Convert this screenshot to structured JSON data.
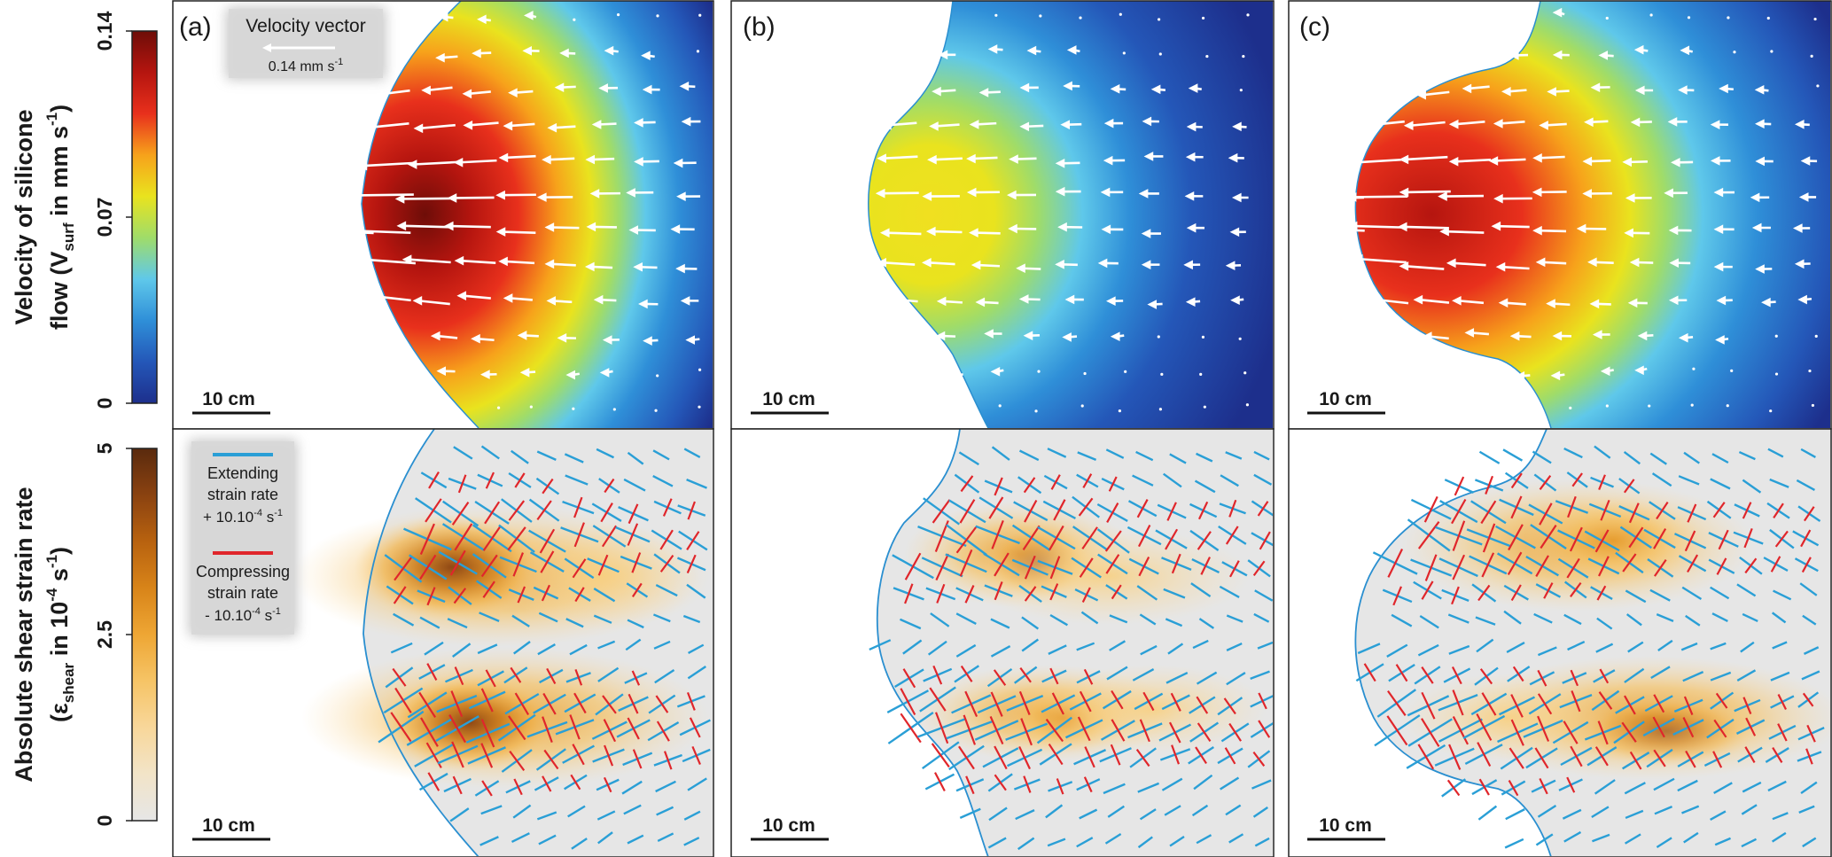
{
  "colorbars": {
    "velocity": {
      "label_main": "Velocity of silicone",
      "label_pre": "flow (V",
      "label_sub": "surf",
      "label_mid": " in mm s",
      "label_sup": "-1",
      "label_end": ")",
      "ticks": [
        {
          "value": 0,
          "label": "0"
        },
        {
          "value": 0.07,
          "label": "0.07"
        },
        {
          "value": 0.14,
          "label": "0.14"
        }
      ],
      "min": 0,
      "max": 0.14,
      "colors": [
        "#1d2f8c",
        "#2457b8",
        "#2f8fd8",
        "#5fc8ea",
        "#9fdc6a",
        "#e9e31e",
        "#f7a21b",
        "#e8301c",
        "#b5150f",
        "#6e0d08"
      ]
    },
    "strain": {
      "label_main": "Absolute shear strain rate",
      "label_pre": "(ε",
      "label_sub": "shear",
      "label_mid": " in 10",
      "label_sup": "-4",
      "label_end": " s",
      "label_sup2": "-1",
      "label_close": ")",
      "ticks": [
        {
          "value": 0,
          "label": "0"
        },
        {
          "value": 2.5,
          "label": "2.5"
        },
        {
          "value": 5,
          "label": "5"
        }
      ],
      "min": 0,
      "max": 5,
      "colors": [
        "#e6e6e6",
        "#f2e4c8",
        "#f8d79a",
        "#f6c466",
        "#eea634",
        "#d88419",
        "#b8620f",
        "#8a4210",
        "#5a2a0e"
      ]
    }
  },
  "panels": [
    {
      "letter": "(a)"
    },
    {
      "letter": "(b)"
    },
    {
      "letter": "(c)"
    }
  ],
  "scale_bar_label": "10 cm",
  "legend_velocity": {
    "title": "Velocity vector",
    "value": "0.14 mm s",
    "value_sup": "-1"
  },
  "legend_strain": {
    "extending_line1": "Extending",
    "extending_line2": "strain rate",
    "extending_value": "+ 10.10",
    "extending_sup": "-4",
    "extending_unit": " s",
    "extending_unit_sup": "-1",
    "compressing_line1": "Compressing",
    "compressing_line2": "strain rate",
    "compressing_value": "- 10.10",
    "compressing_sup": "-4",
    "compressing_unit": " s",
    "compressing_unit_sup": "-1",
    "extending_color": "#2a9fd6",
    "compressing_color": "#e0262b"
  }
}
